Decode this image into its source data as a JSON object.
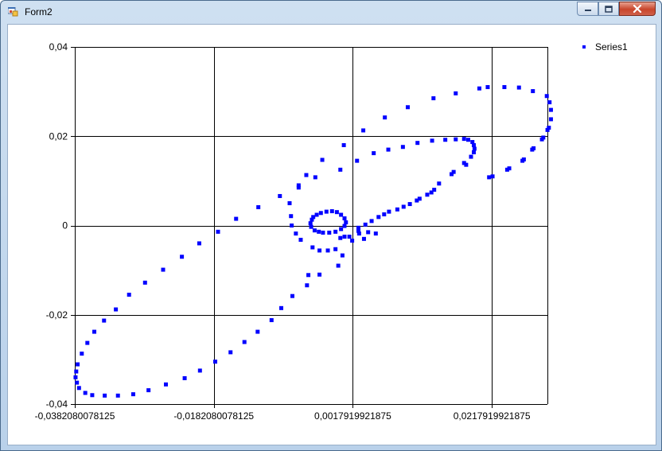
{
  "window": {
    "title": "Form2",
    "icons": {
      "app": "form-app-icon",
      "minimize": "minimize-icon",
      "maximize": "maximize-icon",
      "close": "close-icon"
    },
    "colors": {
      "title_bar": "#b9d1ea",
      "close_button": "#c8452b"
    }
  },
  "chart_data": {
    "type": "scatter",
    "title": "",
    "xlabel": "",
    "ylabel": "",
    "xlim": [
      -0.0382080078125,
      0.0297919921875
    ],
    "ylim": [
      -0.04,
      0.04
    ],
    "x_ticks": [
      -0.0382080078125,
      -0.0182080078125,
      0.0017919921875,
      0.0217919921875
    ],
    "x_tick_labels": [
      "-0,0382080078125",
      "-0,0182080078125",
      "0,0017919921875",
      "0,0217919921875"
    ],
    "y_ticks": [
      0.04,
      0.02,
      0,
      -0.02,
      -0.04
    ],
    "y_tick_labels": [
      "0,04",
      "0,02",
      "0",
      "-0,02",
      "-0,04"
    ],
    "grid": true,
    "legend_position": "top-right",
    "series": [
      {
        "name": "Series1",
        "color": "#0000ff",
        "marker": "square",
        "points": [
          [
            -0.0381,
            -0.034
          ],
          [
            -0.038,
            -0.0327
          ],
          [
            -0.0379,
            -0.0352
          ],
          [
            -0.0378,
            -0.0311
          ],
          [
            -0.0376,
            -0.0364
          ],
          [
            -0.0372,
            -0.0287
          ],
          [
            -0.0367,
            -0.0375
          ],
          [
            -0.0364,
            -0.0263
          ],
          [
            -0.0354,
            -0.0238
          ],
          [
            -0.0357,
            -0.038
          ],
          [
            -0.0339,
            -0.0381
          ],
          [
            -0.034,
            -0.0213
          ],
          [
            -0.032,
            -0.0381
          ],
          [
            -0.0323,
            -0.0188
          ],
          [
            -0.0304,
            -0.0155
          ],
          [
            -0.0298,
            -0.0378
          ],
          [
            -0.0281,
            -0.0128
          ],
          [
            -0.0276,
            -0.0369
          ],
          [
            -0.0255,
            -0.0099
          ],
          [
            -0.0251,
            -0.0356
          ],
          [
            -0.0228,
            -0.007
          ],
          [
            -0.0224,
            -0.0342
          ],
          [
            -0.0203,
            -0.004
          ],
          [
            -0.0202,
            -0.0325
          ],
          [
            -0.018,
            -0.0305
          ],
          [
            -0.0176,
            -0.0014
          ],
          [
            -0.0158,
            -0.0284
          ],
          [
            -0.0138,
            -0.0261
          ],
          [
            -0.015,
            0.0015
          ],
          [
            -0.0119,
            -0.0238
          ],
          [
            -0.0118,
            0.0041
          ],
          [
            -0.0099,
            -0.0212
          ],
          [
            -0.0087,
            0.0066
          ],
          [
            -0.0085,
            -0.0185
          ],
          [
            -0.0069,
            -0.0158
          ],
          [
            -0.0073,
            0.005
          ],
          [
            -0.006,
            0.0085
          ],
          [
            -0.006,
            0.009
          ],
          [
            -0.0071,
            0.0021
          ],
          [
            -0.007,
            0.0
          ],
          [
            -0.0064,
            -0.0018
          ],
          [
            -0.0057,
            -0.0032
          ],
          [
            -0.0049,
            0.0113
          ],
          [
            -0.0048,
            -0.0134
          ],
          [
            -0.0046,
            -0.0111
          ],
          [
            -0.0036,
            0.0108
          ],
          [
            -0.003,
            -0.011
          ],
          [
            -0.0026,
            0.0147
          ],
          [
            -0.004,
            -0.0049
          ],
          [
            -0.003,
            -0.0056
          ],
          [
            -0.0018,
            -0.0056
          ],
          [
            -0.0007,
            -0.0053
          ],
          [
            -0.0003,
            -0.009
          ],
          [
            0.0003,
            -0.0067
          ],
          [
            0.0,
            0.0125
          ],
          [
            0.0005,
            0.018
          ],
          [
            0.0024,
            0.0145
          ],
          [
            0.0033,
            0.0213
          ],
          [
            0.0048,
            0.0162
          ],
          [
            0.0064,
            0.0242
          ],
          [
            0.0069,
            0.017
          ],
          [
            0.009,
            0.0176
          ],
          [
            0.0097,
            0.0265
          ],
          [
            0.0111,
            0.0185
          ],
          [
            0.0132,
            0.019
          ],
          [
            0.0134,
            0.0285
          ],
          [
            0.0151,
            0.0192
          ],
          [
            0.0166,
            0.0193
          ],
          [
            0.0166,
            0.0296
          ],
          [
            0.0178,
            0.0194
          ],
          [
            0.0184,
            0.0192
          ],
          [
            0.019,
            0.0187
          ],
          [
            0.0192,
            0.018
          ],
          [
            0.0193,
            0.0172
          ],
          [
            0.0192,
            0.0164
          ],
          [
            0.0188,
            0.0154
          ],
          [
            0.02,
            0.0307
          ],
          [
            0.0181,
            0.0136
          ],
          [
            0.0178,
            0.014
          ],
          [
            0.0163,
            0.012
          ],
          [
            0.016,
            0.0115
          ],
          [
            0.0142,
            0.0094
          ],
          [
            0.0135,
            0.008
          ],
          [
            0.0131,
            0.0074
          ],
          [
            0.0125,
            0.0069
          ],
          [
            0.0114,
            0.006
          ],
          [
            0.011,
            0.0056
          ],
          [
            0.01,
            0.0048
          ],
          [
            0.0091,
            0.0042
          ],
          [
            0.0082,
            0.0036
          ],
          [
            0.007,
            0.0031
          ],
          [
            0.0063,
            0.0025
          ],
          [
            0.0055,
            0.0019
          ],
          [
            0.0045,
            0.001
          ],
          [
            0.0036,
            0.0002
          ],
          [
            0.0026,
            -0.0005
          ],
          [
            0.0026,
            -0.0012
          ],
          [
            0.0027,
            -0.0018
          ],
          [
            0.0006,
            -0.0025
          ],
          [
            0.0,
            -0.0028
          ],
          [
            0.0013,
            -0.0025
          ],
          [
            0.0017,
            -0.0034
          ],
          [
            0.0034,
            -0.003
          ],
          [
            0.004,
            -0.0015
          ],
          [
            0.0051,
            -0.0018
          ],
          [
            0.0214,
            0.0108
          ],
          [
            0.0219,
            0.011
          ],
          [
            0.024,
            0.0125
          ],
          [
            0.0243,
            0.0128
          ],
          [
            0.0262,
            0.0145
          ],
          [
            0.0264,
            0.0148
          ],
          [
            0.0276,
            0.017
          ],
          [
            0.0278,
            0.0173
          ],
          [
            0.029,
            0.0193
          ],
          [
            0.0292,
            0.0197
          ],
          [
            0.0298,
            0.0214
          ],
          [
            0.03,
            0.0219
          ],
          [
            0.0303,
            0.0238
          ],
          [
            0.0303,
            0.0259
          ],
          [
            0.0301,
            0.0276
          ],
          [
            0.0297,
            0.029
          ],
          [
            0.0277,
            0.0301
          ],
          [
            0.0257,
            0.0309
          ],
          [
            0.0236,
            0.031
          ],
          [
            0.0212,
            0.031
          ],
          [
            -0.0041,
            0.0013
          ],
          [
            -0.0043,
            0.0005
          ],
          [
            -0.0042,
            -0.0003
          ],
          [
            -0.0037,
            -0.0011
          ],
          [
            -0.0031,
            -0.0014
          ],
          [
            -0.0025,
            -0.0016
          ],
          [
            -0.0016,
            -0.0016
          ],
          [
            -0.0007,
            -0.0014
          ],
          [
            0.0001,
            -0.0008
          ],
          [
            0.0006,
            -0.0001
          ],
          [
            0.0008,
            0.0007
          ],
          [
            0.0006,
            0.0016
          ],
          [
            0.0001,
            0.0024
          ],
          [
            -0.0005,
            0.003
          ],
          [
            -0.0012,
            0.0032
          ],
          [
            -0.002,
            0.0031
          ],
          [
            -0.0028,
            0.0028
          ],
          [
            -0.0034,
            0.0024
          ],
          [
            -0.0039,
            0.0019
          ]
        ]
      }
    ]
  }
}
